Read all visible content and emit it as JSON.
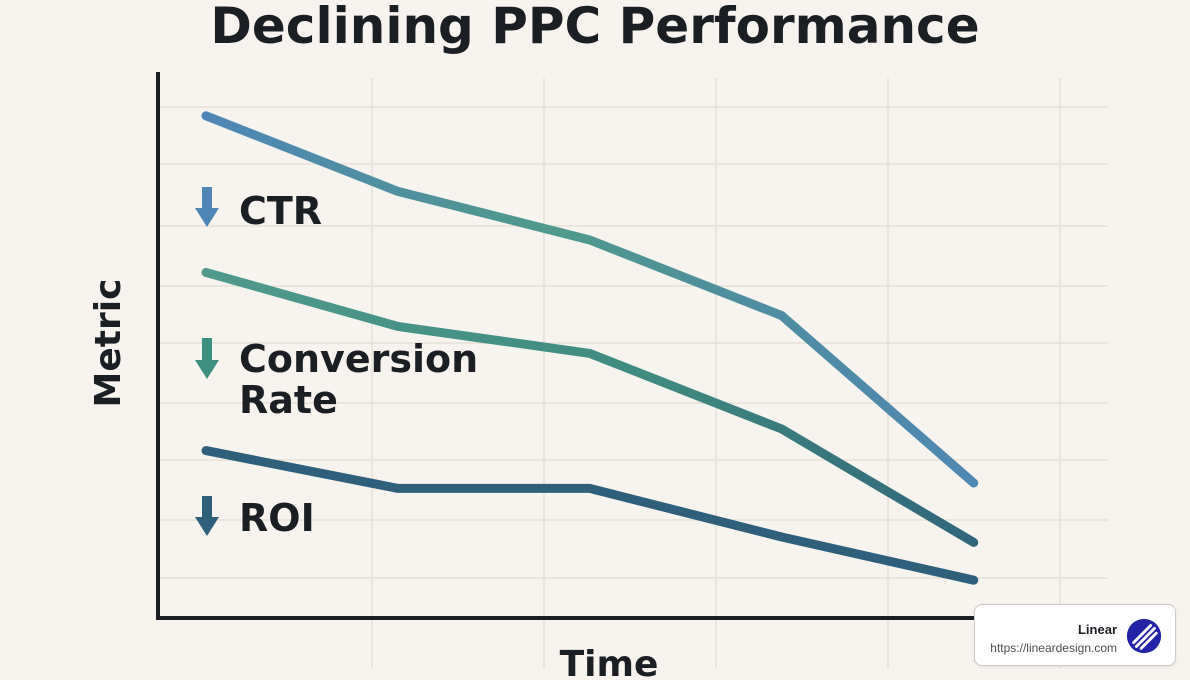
{
  "chart_data": {
    "type": "line",
    "title": "Declining PPC Performance",
    "xlabel": "Time",
    "ylabel": "Metric",
    "x": [
      1,
      2,
      3,
      4,
      5
    ],
    "xlim": [
      0.75,
      5.7
    ],
    "ylim": [
      0,
      100
    ],
    "grid": true,
    "legend_position": "left",
    "series": [
      {
        "name": "CTR",
        "values": [
          93,
          79,
          70,
          56,
          25
        ],
        "color_start": "#4f86b7",
        "color_end": "#4f86b7",
        "gradient_mid": "#4f9a8c"
      },
      {
        "name": "Conversion Rate",
        "values": [
          64,
          54,
          49,
          35,
          14
        ],
        "color_start": "#4f9a8c",
        "color_end": "#2f5f7b"
      },
      {
        "name": "ROI",
        "values": [
          31,
          24,
          24,
          15,
          7
        ],
        "color_start": "#2f5f7b",
        "color_end": "#2f5f7b"
      }
    ]
  },
  "legend": {
    "items": [
      {
        "name": "ctr",
        "lines": [
          "CTR"
        ],
        "color": "#4f86b7"
      },
      {
        "name": "conversion-rate",
        "lines": [
          "Conversion",
          "Rate"
        ],
        "color": "#3d8f7f"
      },
      {
        "name": "roi",
        "lines": [
          "ROI"
        ],
        "color": "#2f5f7b"
      }
    ],
    "icon": "down-arrow-icon"
  },
  "watermark": {
    "title": "Linear",
    "url": "https://lineardesign.com",
    "logo_icon": "linear-logo-icon",
    "logo_color": "#2323a8"
  }
}
